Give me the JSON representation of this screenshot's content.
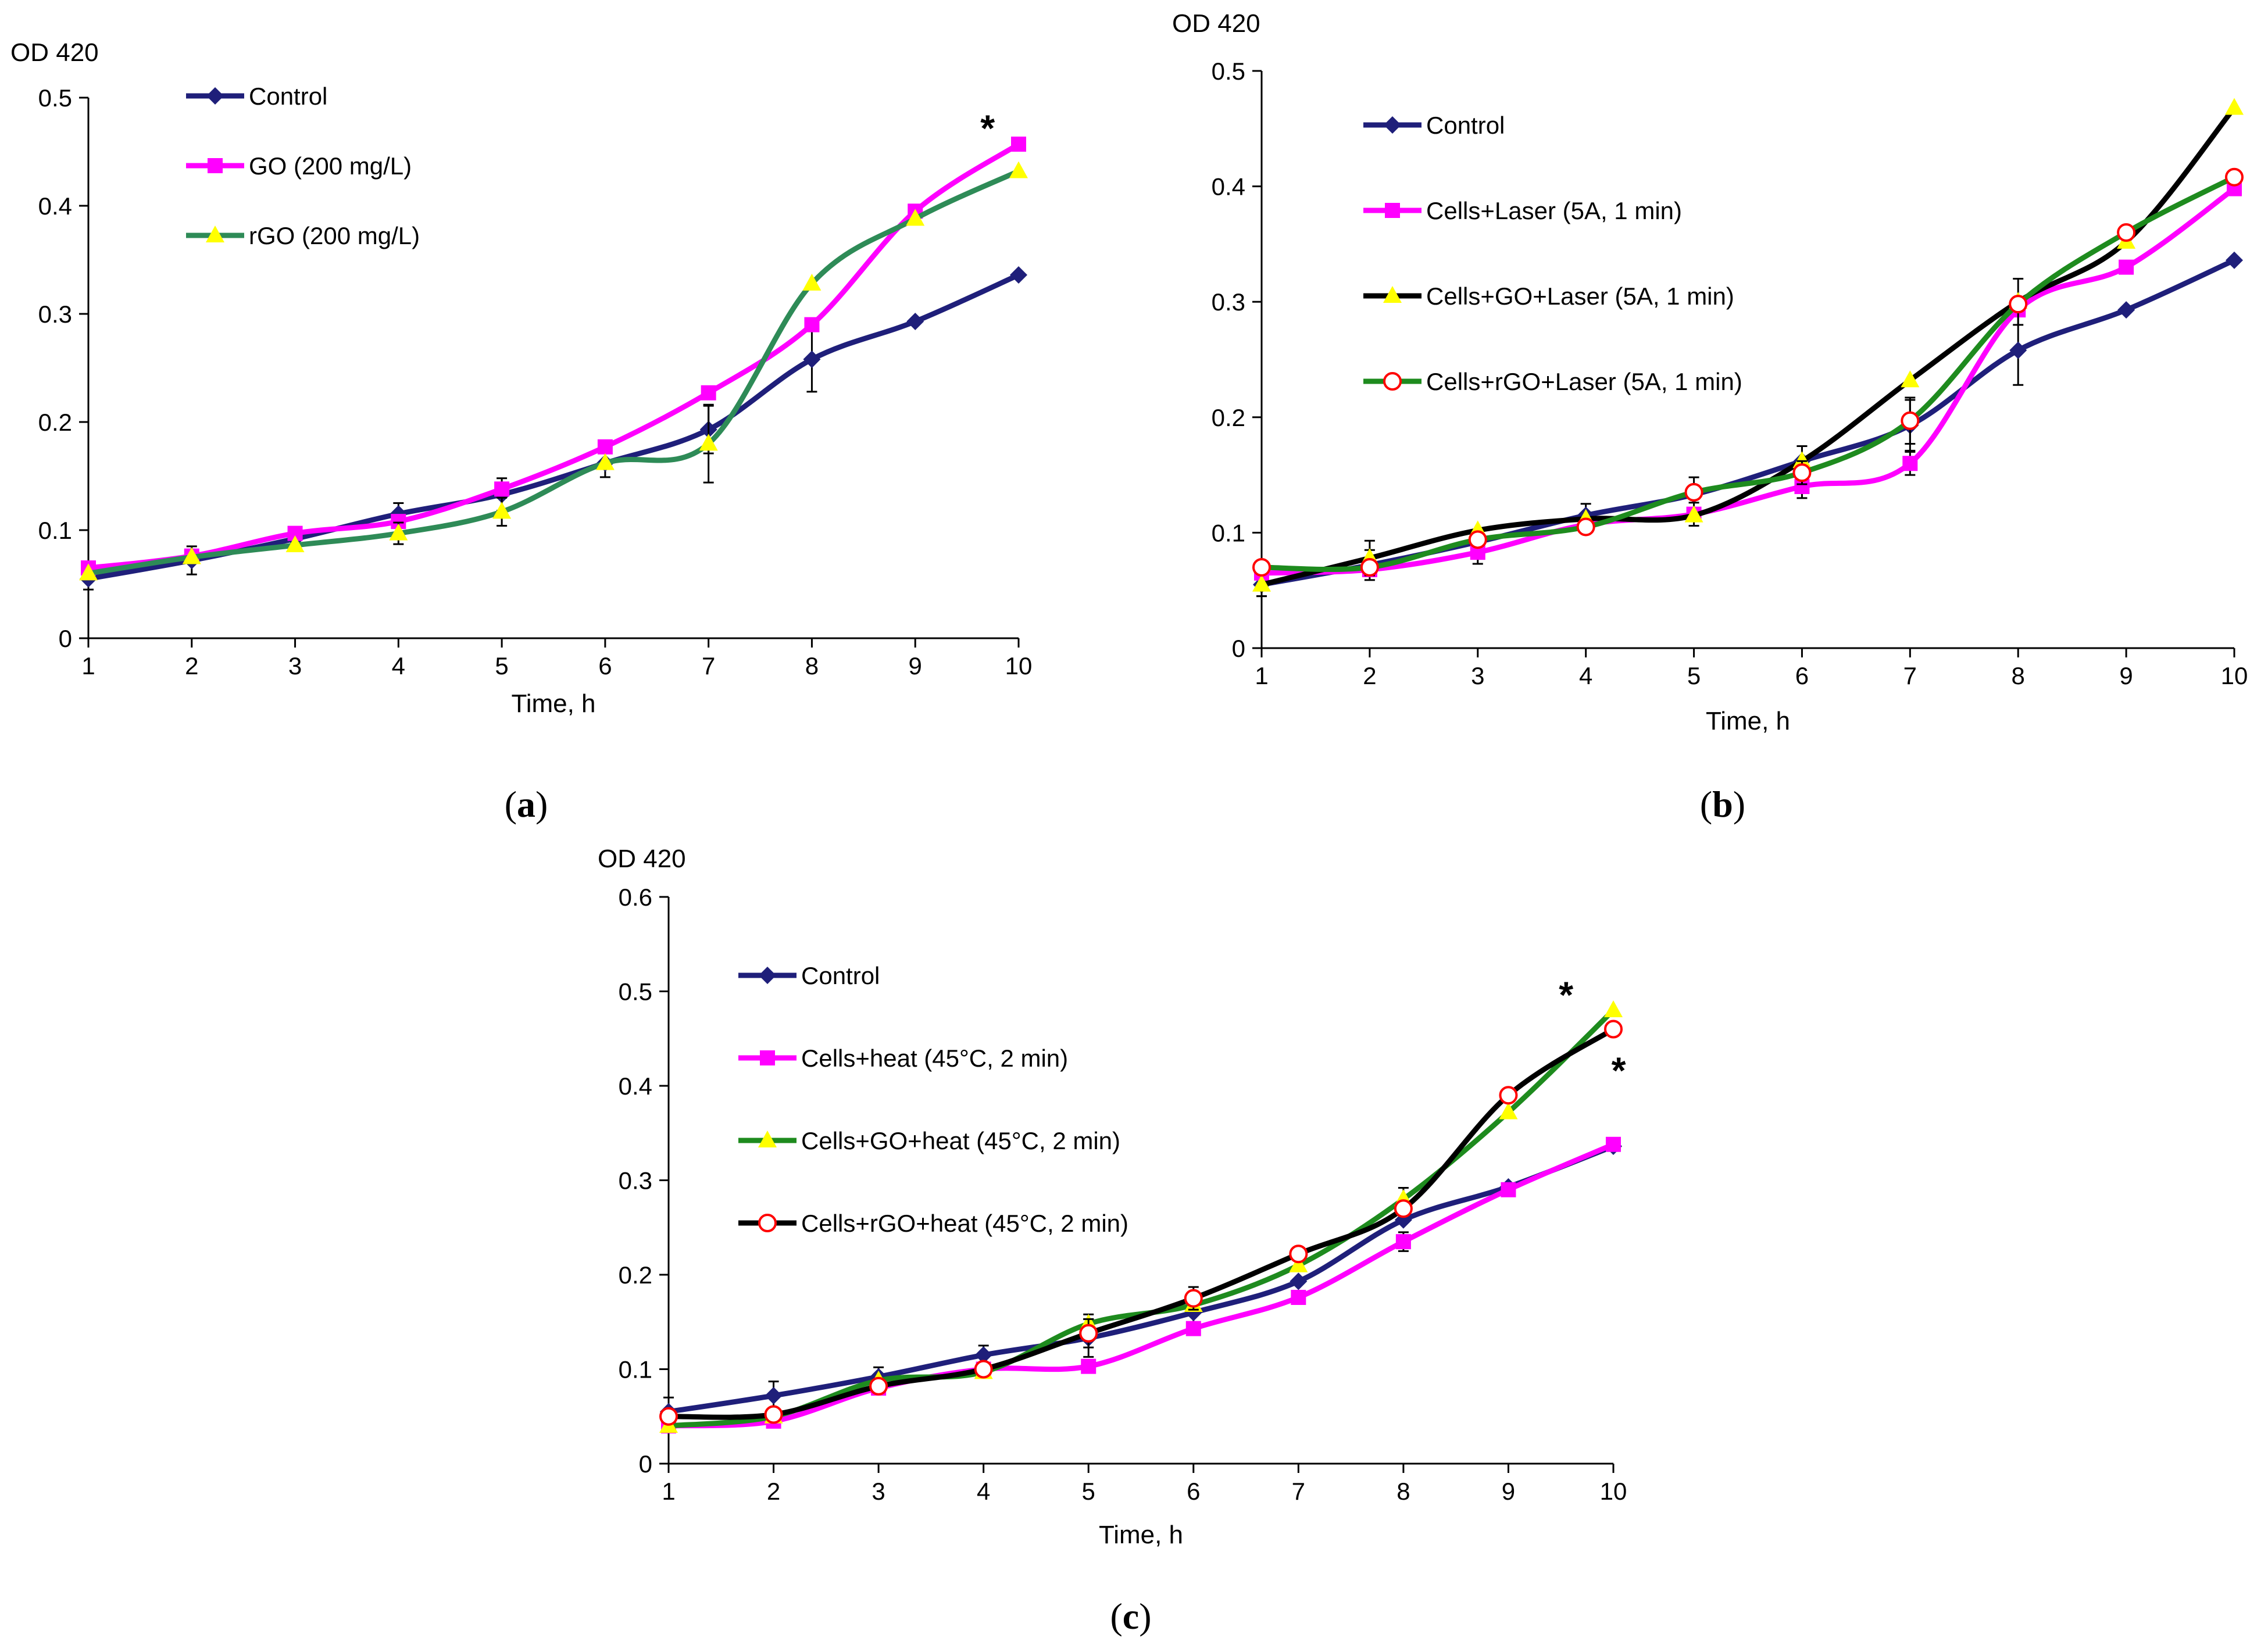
{
  "chart_data": [
    {
      "type": "line",
      "panel_label": "(a)",
      "ylabel": "OD 420",
      "xlabel": "Time, h",
      "x": [
        1,
        2,
        3,
        4,
        5,
        6,
        7,
        8,
        9,
        10
      ],
      "xlim": [
        1,
        10
      ],
      "ylim": [
        0,
        0.5
      ],
      "yticks": [
        "0",
        "0.1",
        "0.2",
        "0.3",
        "0.4",
        "0.5"
      ],
      "xticks": [
        "1",
        "2",
        "3",
        "4",
        "5",
        "6",
        "7",
        "8",
        "9",
        "10"
      ],
      "grid": false,
      "legend_position": "top-left",
      "annotations": [
        {
          "text": "*",
          "x": 9.7,
          "y": 0.475
        }
      ],
      "series": [
        {
          "name": "Control",
          "line_color": "#1f1f7a",
          "marker": "diamond",
          "marker_color": "#1f1f7a",
          "values": [
            0.055,
            0.072,
            0.092,
            0.115,
            0.133,
            0.162,
            0.193,
            0.258,
            0.293,
            0.336
          ],
          "error": [
            0.01,
            0.013,
            0.008,
            0.01,
            0.015,
            0.013,
            0.022,
            0.03,
            0,
            0
          ]
        },
        {
          "name": "GO (200 mg/L)",
          "line_color": "#ff00ff",
          "marker": "square",
          "marker_color": "#ff00ff",
          "values": [
            0.065,
            0.076,
            0.097,
            0.108,
            0.138,
            0.177,
            0.227,
            0.29,
            0.395,
            0.457
          ],
          "error": [
            0,
            0,
            0,
            0,
            0,
            0,
            0,
            0,
            0,
            0
          ]
        },
        {
          "name": "rGO (200 mg/L)",
          "line_color": "#2e8b57",
          "marker": "triangle",
          "marker_color": "#ffff00",
          "values": [
            0.06,
            0.075,
            0.086,
            0.097,
            0.117,
            0.162,
            0.18,
            0.328,
            0.388,
            0.432
          ],
          "error": [
            0,
            0,
            0,
            0.01,
            0.013,
            0,
            0.036,
            0,
            0,
            0
          ]
        }
      ]
    },
    {
      "type": "line",
      "panel_label": "(b)",
      "ylabel": "OD 420",
      "xlabel": "Time, h",
      "x": [
        1,
        2,
        3,
        4,
        5,
        6,
        7,
        8,
        9,
        10
      ],
      "xlim": [
        1,
        10
      ],
      "ylim": [
        0,
        0.5
      ],
      "yticks": [
        "0",
        "0.1",
        "0.2",
        "0.3",
        "0.4",
        "0.5"
      ],
      "xticks": [
        "1",
        "2",
        "3",
        "4",
        "5",
        "6",
        "7",
        "8",
        "9",
        "10"
      ],
      "grid": false,
      "legend_position": "top-left",
      "annotations": [],
      "series": [
        {
          "name": "Control",
          "line_color": "#1f1f7a",
          "marker": "diamond",
          "marker_color": "#1f1f7a",
          "values": [
            0.055,
            0.072,
            0.092,
            0.115,
            0.133,
            0.162,
            0.193,
            0.258,
            0.293,
            0.336
          ],
          "error": [
            0.01,
            0.013,
            0.008,
            0.01,
            0.015,
            0.013,
            0.022,
            0.03,
            0,
            0
          ]
        },
        {
          "name": "Cells+Laser (5A, 1 min)",
          "line_color": "#ff00ff",
          "marker": "square",
          "marker_color": "#ff00ff",
          "values": [
            0.065,
            0.068,
            0.083,
            0.107,
            0.116,
            0.14,
            0.16,
            0.293,
            0.33,
            0.398
          ],
          "error": [
            0,
            0,
            0.01,
            0,
            0.01,
            0.01,
            0.01,
            0,
            0,
            0
          ]
        },
        {
          "name": "Cells+GO+Laser (5A, 1 min)",
          "line_color": "#000000",
          "marker": "triangle",
          "marker_color": "#ffff00",
          "values": [
            0.055,
            0.078,
            0.102,
            0.112,
            0.115,
            0.162,
            0.232,
            0.3,
            0.352,
            0.468
          ],
          "error": [
            0.01,
            0.015,
            0,
            0,
            0,
            0.013,
            0,
            0.02,
            0,
            0
          ]
        },
        {
          "name": "Cells+rGO+Laser (5A, 1 min)",
          "line_color": "#1e8b1e",
          "marker": "circle",
          "marker_color": "#ff0000",
          "values": [
            0.07,
            0.07,
            0.094,
            0.105,
            0.135,
            0.152,
            0.197,
            0.298,
            0.36,
            0.408
          ],
          "error": [
            0,
            0,
            0,
            0,
            0,
            0.01,
            0.02,
            0,
            0,
            0
          ]
        }
      ]
    },
    {
      "type": "line",
      "panel_label": "(c)",
      "ylabel": "OD 420",
      "xlabel": "Time, h",
      "x": [
        1,
        2,
        3,
        4,
        5,
        6,
        7,
        8,
        9,
        10
      ],
      "xlim": [
        1,
        10
      ],
      "ylim": [
        0,
        0.6
      ],
      "yticks": [
        "0",
        "0.1",
        "0.2",
        "0.3",
        "0.4",
        "0.5",
        "0.6"
      ],
      "xticks": [
        "1",
        "2",
        "3",
        "4",
        "5",
        "6",
        "7",
        "8",
        "9",
        "10"
      ],
      "grid": false,
      "legend_position": "top-left",
      "annotations": [
        {
          "text": "*",
          "x": 9.55,
          "y": 0.5
        },
        {
          "text": "*",
          "x": 10.05,
          "y": 0.42
        }
      ],
      "series": [
        {
          "name": "Control",
          "line_color": "#1f1f7a",
          "marker": "diamond",
          "marker_color": "#1f1f7a",
          "values": [
            0.055,
            0.072,
            0.092,
            0.115,
            0.133,
            0.16,
            0.193,
            0.258,
            0.293,
            0.336
          ],
          "error": [
            0.015,
            0.015,
            0.01,
            0.01,
            0.02,
            0.012,
            0,
            0,
            0,
            0
          ]
        },
        {
          "name": "Cells+heat (45°C, 2 min)",
          "line_color": "#ff00ff",
          "marker": "square",
          "marker_color": "#ff00ff",
          "values": [
            0.04,
            0.045,
            0.08,
            0.1,
            0.103,
            0.143,
            0.176,
            0.235,
            0.29,
            0.338
          ],
          "error": [
            0,
            0,
            0,
            0,
            0,
            0,
            0,
            0.01,
            0,
            0
          ]
        },
        {
          "name": "Cells+GO+heat (45°C, 2 min)",
          "line_color": "#1e8b1e",
          "marker": "triangle",
          "marker_color": "#ffff00",
          "values": [
            0.04,
            0.05,
            0.088,
            0.097,
            0.148,
            0.168,
            0.21,
            0.28,
            0.372,
            0.48
          ],
          "error": [
            0,
            0,
            0,
            0,
            0.01,
            0,
            0,
            0.012,
            0,
            0
          ]
        },
        {
          "name": "Cells+rGO+heat (45°C, 2 min)",
          "line_color": "#000000",
          "marker": "circle",
          "marker_color": "#ff0000",
          "values": [
            0.05,
            0.052,
            0.082,
            0.1,
            0.138,
            0.175,
            0.222,
            0.27,
            0.39,
            0.46
          ],
          "error": [
            0,
            0,
            0,
            0,
            0.015,
            0.012,
            0,
            0,
            0,
            0
          ]
        }
      ]
    }
  ]
}
